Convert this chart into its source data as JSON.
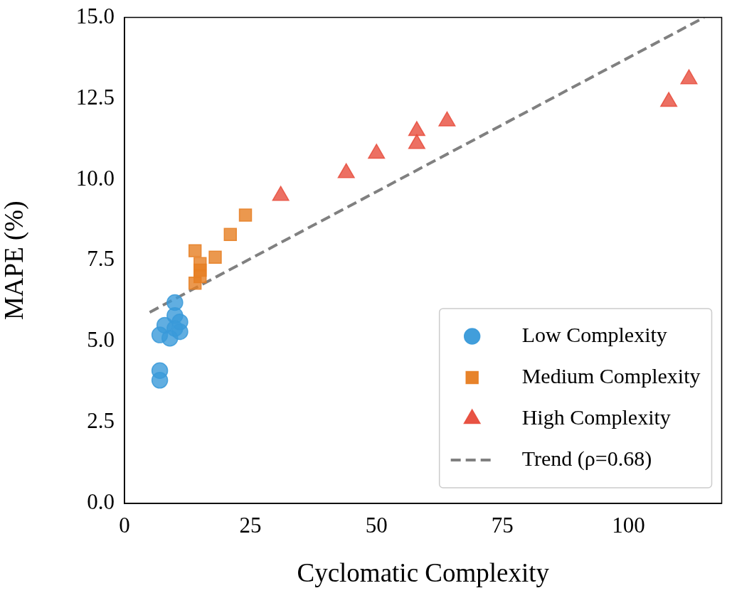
{
  "chart_data": {
    "type": "scatter",
    "xlabel": "Cyclomatic Complexity",
    "ylabel": "MAPE (%)",
    "xlim": [
      0,
      118.5
    ],
    "ylim": [
      0,
      15
    ],
    "xticks": [
      0,
      25,
      50,
      75,
      100
    ],
    "yticks": [
      {
        "value": 0,
        "label": "0.0"
      },
      {
        "value": 2.5,
        "label": "2.5"
      },
      {
        "value": 5,
        "label": "5.0"
      },
      {
        "value": 7.5,
        "label": "7.5"
      },
      {
        "value": 10,
        "label": "10.0"
      },
      {
        "value": 12.5,
        "label": "12.5"
      },
      {
        "value": 15,
        "label": "15.0"
      }
    ],
    "grid": false,
    "legend": "bottom right",
    "series": [
      {
        "name": "Low Complexity",
        "color": "#3a9ad9",
        "marker": "circle",
        "x": [
          10,
          10,
          8,
          11,
          7,
          9,
          11,
          10,
          7,
          7
        ],
        "values": [
          6.2,
          5.8,
          5.5,
          5.6,
          5.2,
          5.1,
          5.3,
          5.4,
          4.1,
          3.8
        ]
      },
      {
        "name": "Medium Complexity",
        "color": "#e67e22",
        "marker": "square",
        "x": [
          14,
          18,
          15,
          15,
          15,
          14,
          21,
          24
        ],
        "values": [
          7.8,
          7.6,
          7.4,
          7.2,
          7.0,
          6.8,
          8.3,
          8.9
        ]
      },
      {
        "name": "High Complexity",
        "color": "#e74c3c",
        "marker": "triangle",
        "x": [
          31,
          44,
          50,
          58,
          58,
          64,
          108,
          112
        ],
        "values": [
          9.5,
          10.2,
          10.8,
          11.5,
          11.1,
          11.8,
          12.4,
          13.1
        ]
      },
      {
        "name": "Trend (ρ=0.68)",
        "type": "line",
        "color": "#808080",
        "marker": "none",
        "line_style": "dashed",
        "x": [
          5,
          115
        ],
        "values": [
          5.9,
          15.0
        ]
      }
    ]
  }
}
